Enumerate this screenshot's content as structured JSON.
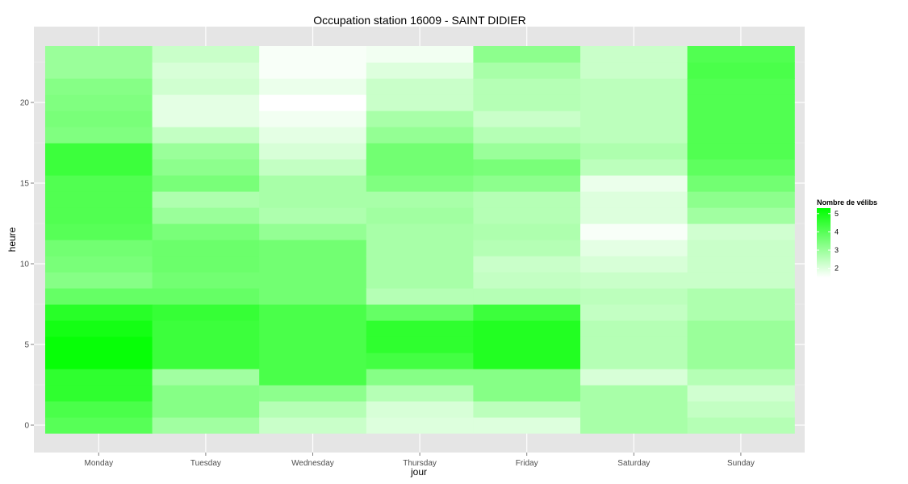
{
  "chart_data": {
    "type": "heatmap",
    "title": "Occupation station 16009 - SAINT DIDIER",
    "xlabel": "jour",
    "ylabel": "heure",
    "x_categories": [
      "Monday",
      "Tuesday",
      "Wednesday",
      "Thursday",
      "Friday",
      "Saturday",
      "Sunday"
    ],
    "y_values": [
      0,
      1,
      2,
      3,
      4,
      5,
      6,
      7,
      8,
      9,
      10,
      11,
      12,
      13,
      14,
      15,
      16,
      17,
      18,
      19,
      20,
      21,
      22,
      23
    ],
    "ylim": [
      -0.5,
      23.5
    ],
    "y_ticks": [
      0,
      5,
      10,
      15,
      20
    ],
    "grid": true,
    "legend": {
      "title": "Nombre de vélibs",
      "position": "right",
      "ticks": [
        2,
        3,
        4,
        5
      ],
      "range": [
        1.5,
        5.3
      ],
      "low_color": "#ffffff",
      "high_color": "#00ff00"
    },
    "values": {
      "Monday": [
        4.0,
        4.2,
        4.6,
        4.6,
        5.2,
        5.2,
        5.0,
        4.7,
        3.8,
        3.3,
        3.5,
        3.6,
        4.0,
        4.1,
        4.1,
        4.1,
        4.4,
        4.4,
        3.4,
        3.5,
        3.4,
        3.3,
        3.0,
        3.0
      ],
      "Tuesday": [
        2.9,
        3.3,
        3.3,
        2.9,
        4.4,
        4.4,
        4.4,
        4.5,
        3.8,
        3.6,
        3.7,
        3.7,
        3.5,
        3.0,
        2.7,
        3.5,
        3.2,
        3.0,
        2.4,
        1.9,
        1.9,
        2.2,
        2.1,
        2.3
      ],
      "Wednesday": [
        2.3,
        2.6,
        3.2,
        4.2,
        4.2,
        4.2,
        4.2,
        4.2,
        3.6,
        3.6,
        3.6,
        3.6,
        3.1,
        2.7,
        2.8,
        2.8,
        2.4,
        2.1,
        1.9,
        1.7,
        1.5,
        1.8,
        1.6,
        1.6
      ],
      "Thursday": [
        2.0,
        2.1,
        2.6,
        3.3,
        4.3,
        4.6,
        4.6,
        3.8,
        2.6,
        2.8,
        2.8,
        2.8,
        2.8,
        2.9,
        2.8,
        3.4,
        3.6,
        3.6,
        3.1,
        2.8,
        2.3,
        2.3,
        2.0,
        1.7
      ],
      "Friday": [
        2.0,
        2.5,
        3.3,
        3.3,
        4.8,
        4.8,
        4.8,
        4.4,
        2.6,
        2.4,
        2.3,
        2.6,
        2.7,
        2.6,
        2.6,
        3.2,
        3.5,
        3.0,
        2.6,
        2.3,
        2.6,
        2.6,
        2.8,
        3.2
      ],
      "Saturday": [
        2.8,
        2.8,
        2.8,
        2.1,
        2.6,
        2.6,
        2.6,
        2.4,
        2.5,
        2.3,
        2.1,
        1.9,
        1.6,
        2.0,
        2.0,
        1.8,
        2.5,
        2.7,
        2.5,
        2.5,
        2.5,
        2.5,
        2.3,
        2.3
      ],
      "Sunday": [
        2.6,
        2.4,
        2.2,
        2.6,
        3.0,
        3.0,
        3.0,
        2.7,
        2.7,
        2.3,
        2.3,
        2.3,
        2.2,
        2.9,
        3.2,
        3.6,
        3.9,
        4.1,
        4.1,
        4.1,
        4.1,
        4.1,
        4.2,
        4.1
      ]
    }
  }
}
